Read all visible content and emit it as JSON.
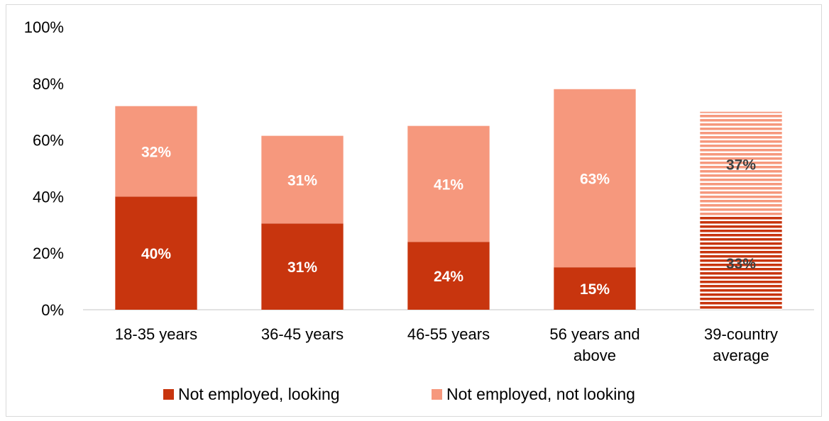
{
  "chart_data": {
    "type": "bar",
    "stacked": true,
    "categories": [
      [
        "18-35 years"
      ],
      [
        "36-45 years"
      ],
      [
        "46-55 years"
      ],
      [
        "56 years and",
        "above"
      ],
      [
        "39-country",
        "average"
      ]
    ],
    "series": [
      {
        "name": "Not employed, looking",
        "values": [
          40,
          30.5,
          24,
          15,
          33
        ],
        "labels": [
          "40%",
          "31%",
          "24%",
          "15%",
          "33%"
        ],
        "color": "#c8350e",
        "label_color": "#ffffff"
      },
      {
        "name": "Not employed, not looking",
        "values": [
          32,
          31,
          41,
          63,
          37
        ],
        "labels": [
          "32%",
          "31%",
          "41%",
          "63%",
          "37%"
        ],
        "color": "#f6987d",
        "label_color": "#ffffff"
      }
    ],
    "striped_categories": [
      4
    ],
    "striped_label_color": "#404040",
    "yticks": [
      "0%",
      "20%",
      "40%",
      "60%",
      "80%",
      "100%"
    ],
    "ylim": [
      0,
      100
    ],
    "grid": false,
    "legend_position": "bottom"
  }
}
